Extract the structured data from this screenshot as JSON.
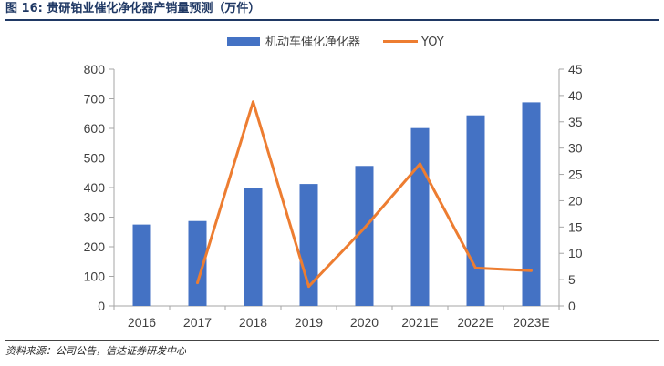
{
  "header": {
    "title": "图 16:  贵研铂业催化净化器产销量预测（万件）"
  },
  "footer": {
    "source": "资料来源：公司公告，信达证券研发中心"
  },
  "colors": {
    "bar": "#4472c4",
    "line": "#ed7d31",
    "title": "#1f3864"
  },
  "chart_data": {
    "type": "bar",
    "categories": [
      "2016",
      "2017",
      "2018",
      "2019",
      "2020",
      "2021E",
      "2022E",
      "2023E"
    ],
    "series": [
      {
        "name": "机动车催化净化器",
        "type": "bar",
        "axis": "left",
        "values": [
          275,
          287,
          397,
          412,
          473,
          601,
          644,
          688
        ]
      },
      {
        "name": "YOY",
        "type": "line",
        "axis": "right",
        "values": [
          null,
          4.4,
          38.8,
          3.7,
          14.8,
          27.0,
          7.2,
          6.7
        ]
      }
    ],
    "ylim_left": [
      0,
      800
    ],
    "yticks_left": [
      0,
      100,
      200,
      300,
      400,
      500,
      600,
      700,
      800
    ],
    "ylim_right": [
      0,
      45
    ],
    "yticks_right": [
      0,
      5,
      10,
      15,
      20,
      25,
      30,
      35,
      40,
      45
    ],
    "legend_position": "top",
    "grid": false
  }
}
